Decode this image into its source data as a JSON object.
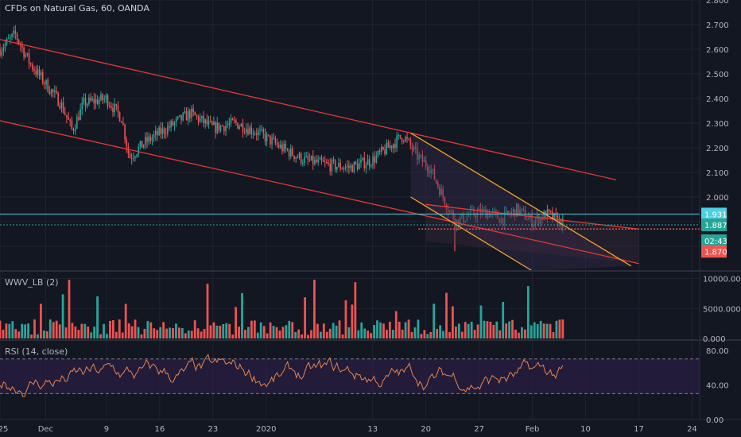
{
  "symbol_title": "CFDs on Natural Gas, 60, OANDA",
  "volume_pane_label": "WWV_LB (2)",
  "rsi_pane_label": "RSI (14, close)",
  "colors": {
    "background": "#131722",
    "grid": "#1f2430",
    "up": "#26a69a",
    "down": "#ef5350",
    "channel_red": "#e53935",
    "channel_orange": "#f5a623",
    "cyan": "#4dd0e1",
    "rsi_line": "#e8844a",
    "rsi_band": "#2a1f45"
  },
  "chart_data": [
    {
      "type": "candlestick",
      "title": "CFDs on Natural Gas, 60, OANDA",
      "ylim": [
        1.7,
        2.8
      ],
      "price_ticks": [
        "2.800",
        "2.700",
        "2.600",
        "2.500",
        "2.400",
        "2.300",
        "2.200",
        "2.100",
        "2.000"
      ],
      "x_tick_labels": [
        "25",
        "Dec",
        "9",
        "16",
        "23",
        "2020",
        "13",
        "20",
        "27",
        "Feb",
        "10",
        "17",
        "24"
      ],
      "price_labels": [
        {
          "value": "1.931",
          "color": "#4dd0e1"
        },
        {
          "value": "1.887",
          "color": "#26a69a"
        },
        {
          "value": "02:43",
          "color": "#26a69a"
        },
        {
          "value": "1.870",
          "color": "#ef5350"
        }
      ],
      "path_anchors": [
        {
          "x": 0,
          "y": 2.6
        },
        {
          "x": 2,
          "y": 2.66
        },
        {
          "x": 4,
          "y": 2.54
        },
        {
          "x": 6,
          "y": 2.46
        },
        {
          "x": 8,
          "y": 2.38
        },
        {
          "x": 9.5,
          "y": 2.27
        },
        {
          "x": 11,
          "y": 2.38
        },
        {
          "x": 14,
          "y": 2.4
        },
        {
          "x": 16,
          "y": 2.32
        },
        {
          "x": 17,
          "y": 2.16
        },
        {
          "x": 19,
          "y": 2.22
        },
        {
          "x": 22,
          "y": 2.28
        },
        {
          "x": 25,
          "y": 2.34
        },
        {
          "x": 28,
          "y": 2.28
        },
        {
          "x": 31,
          "y": 2.3
        },
        {
          "x": 34,
          "y": 2.26
        },
        {
          "x": 37,
          "y": 2.2
        },
        {
          "x": 40,
          "y": 2.15
        },
        {
          "x": 43,
          "y": 2.13
        },
        {
          "x": 46,
          "y": 2.12
        },
        {
          "x": 49,
          "y": 2.15
        },
        {
          "x": 51,
          "y": 2.2
        },
        {
          "x": 53,
          "y": 2.25
        },
        {
          "x": 55,
          "y": 2.16
        },
        {
          "x": 56.5,
          "y": 2.12
        },
        {
          "x": 58,
          "y": 2.02
        },
        {
          "x": 59,
          "y": 1.95
        },
        {
          "x": 60,
          "y": 1.9
        },
        {
          "x": 62,
          "y": 1.93
        },
        {
          "x": 64,
          "y": 1.94
        },
        {
          "x": 66,
          "y": 1.91
        },
        {
          "x": 68,
          "y": 1.95
        },
        {
          "x": 70,
          "y": 1.9
        },
        {
          "x": 72,
          "y": 1.93
        },
        {
          "x": 74,
          "y": 1.89
        }
      ],
      "trend_lines": [
        {
          "name": "channel-upper-red",
          "color": "#e53935",
          "points": [
            {
              "x": 0,
              "y": 2.64
            },
            {
              "x": 81,
              "y": 2.07
            }
          ]
        },
        {
          "name": "channel-lower-red",
          "color": "#e53935",
          "points": [
            {
              "x": 0,
              "y": 2.31
            },
            {
              "x": 84,
              "y": 1.73
            }
          ]
        },
        {
          "name": "inner-upper-red",
          "color": "#e53935",
          "points": [
            {
              "x": 56,
              "y": 1.97
            },
            {
              "x": 84,
              "y": 1.87
            }
          ]
        },
        {
          "name": "orange-upper",
          "color": "#f5a623",
          "points": [
            {
              "x": 54,
              "y": 2.26
            },
            {
              "x": 83,
              "y": 1.72
            }
          ]
        },
        {
          "name": "orange-lower",
          "color": "#f5a623",
          "points": [
            {
              "x": 54,
              "y": 2.0
            },
            {
              "x": 70,
              "y": 1.7
            }
          ]
        }
      ],
      "horizontal_lines": [
        {
          "name": "cyan-level",
          "value": 1.931,
          "color": "#4dd0e1",
          "style": "solid"
        },
        {
          "name": "current-price-level",
          "value": 1.887,
          "color": "#26a69a",
          "style": "dotted"
        },
        {
          "name": "red-level",
          "value": 1.87,
          "color": "#ef5350",
          "style": "dotted"
        }
      ]
    },
    {
      "type": "bar",
      "title": "WWV_LB (2)",
      "ylim": [
        0,
        11000
      ],
      "y_tick_labels": [
        "10000.000",
        "5000.000",
        "0.000"
      ],
      "series_colors": [
        "#26a69a",
        "#ef5350"
      ]
    },
    {
      "type": "line",
      "title": "RSI (14, close)",
      "ylim": [
        0,
        90
      ],
      "y_tick_labels": [
        "80.00",
        "40.00",
        "0.00"
      ],
      "upper_band": 70,
      "lower_band": 30
    }
  ]
}
